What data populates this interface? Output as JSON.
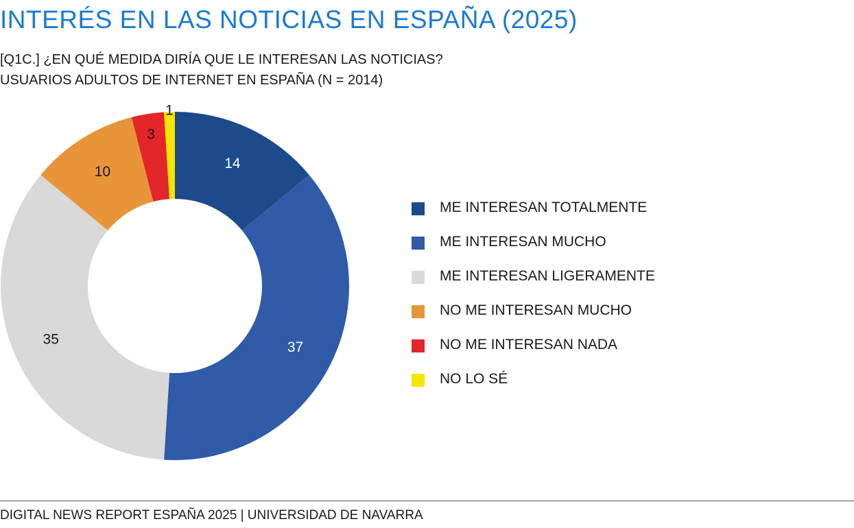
{
  "header": {
    "title": "INTERÉS EN LAS NOTICIAS EN ESPAÑA (2025)",
    "subtitle_line1": "[Q1C.] ¿EN QUÉ MEDIDA DIRÍA QUE LE INTERESAN LAS NOTICIAS?",
    "subtitle_line2": "USUARIOS ADULTOS DE INTERNET EN ESPAÑA (N = 2014)"
  },
  "chart_data": {
    "type": "pie",
    "variant": "donut",
    "categories": [
      "ME INTERESAN TOTALMENTE",
      "ME INTERESAN MUCHO",
      "ME INTERESAN LIGERAMENTE",
      "NO ME INTERESAN MUCHO",
      "NO ME INTERESAN NADA",
      "NO LO SÉ"
    ],
    "values": [
      14,
      37,
      35,
      10,
      3,
      1
    ],
    "colors": [
      "#1d4a8a",
      "#2f5ba8",
      "#d9d9d9",
      "#e8953a",
      "#e3262a",
      "#f5e600"
    ],
    "label_colors": [
      "#ffffff",
      "#ffffff",
      "#1a1a1a",
      "#1a1a1a",
      "#1a1a1a",
      "#1a1a1a"
    ],
    "legend_position": "right",
    "start": "top, clockwise"
  },
  "legend": {
    "items": [
      {
        "label": "ME INTERESAN TOTALMENTE",
        "color": "#1d4a8a"
      },
      {
        "label": "ME INTERESAN MUCHO",
        "color": "#2f5ba8"
      },
      {
        "label": "ME INTERESAN LIGERAMENTE",
        "color": "#d9d9d9"
      },
      {
        "label": "NO ME INTERESAN MUCHO",
        "color": "#e8953a"
      },
      {
        "label": "NO ME INTERESAN NADA",
        "color": "#e3262a"
      },
      {
        "label": "NO LO SÉ",
        "color": "#f5e600"
      }
    ]
  },
  "footer": {
    "text": "DIGITAL NEWS REPORT ESPAÑA 2025 | UNIVERSIDAD DE NAVARRA"
  }
}
